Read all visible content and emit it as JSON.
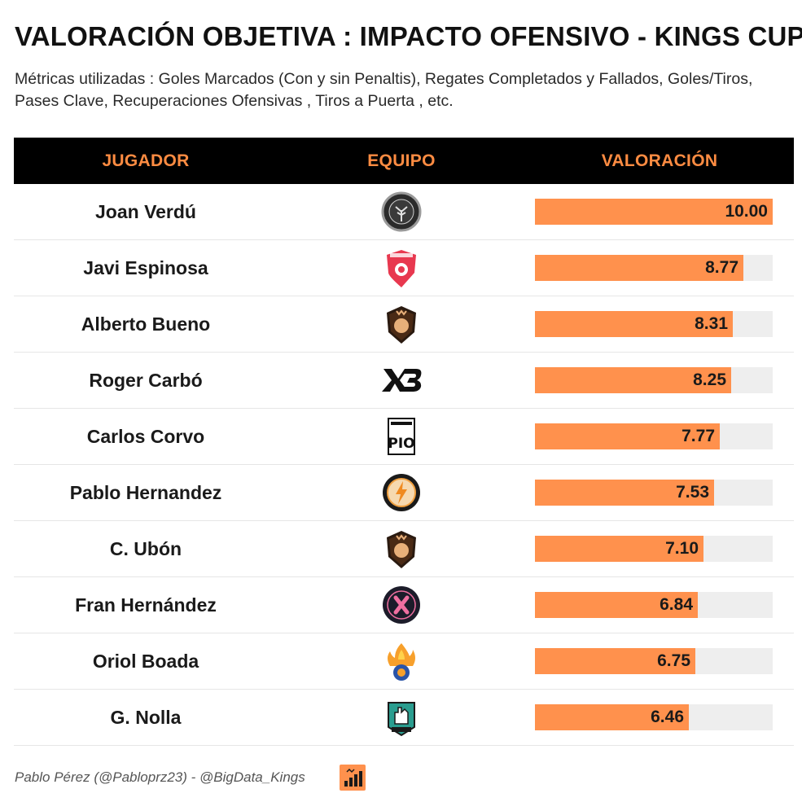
{
  "title": "VALORACIÓN OBJETIVA : IMPACTO OFENSIVO - KINGS CUP",
  "subtitle": "Métricas utilizadas : Goles Marcados (Con y sin Penaltis), Regates Completados y Fallados, Goles/Tiros, Pases Clave, Recuperaciones Ofensivas , Tiros a Puerta , etc.",
  "table": {
    "headers": {
      "player": "JUGADOR",
      "team": "EQUIPO",
      "value": "VALORACIÓN"
    }
  },
  "colors": {
    "bar": "#ff914d",
    "track": "#eeeeee",
    "header_bg": "#000000",
    "header_text": "#ff8c42"
  },
  "chart_data": {
    "type": "bar",
    "orientation": "horizontal",
    "title": "VALORACIÓN OBJETIVA : IMPACTO OFENSIVO - KINGS CUP",
    "xlim": [
      0,
      10
    ],
    "categories": [
      "Joan Verdú",
      "Javi Espinosa",
      "Alberto Bueno",
      "Roger Carbó",
      "Carlos Corvo",
      "Pablo Hernandez",
      "C. Ubón",
      "Fran Hernández",
      "Oriol Boada",
      "G. Nolla"
    ],
    "values": [
      10.0,
      8.77,
      8.31,
      8.25,
      7.77,
      7.53,
      7.1,
      6.84,
      6.75,
      6.46
    ],
    "labels": [
      "10.00",
      "8.77",
      "8.31",
      "8.25",
      "7.77",
      "7.53",
      "7.10",
      "6.84",
      "6.75",
      "6.46"
    ],
    "team_icons": [
      "tree-crest-icon",
      "red-bird-crest-icon",
      "lion-shield-icon",
      "xb-logo-icon",
      "pio-logo-icon",
      "lightning-circle-icon",
      "lion-shield-icon",
      "k-circle-icon",
      "fire-crest-icon",
      "hand-crest-icon"
    ]
  },
  "footer": {
    "credit": "Pablo Pérez (@Pabloprz23) - @BigData_Kings",
    "logo_icon": "bar-chart-icon"
  }
}
